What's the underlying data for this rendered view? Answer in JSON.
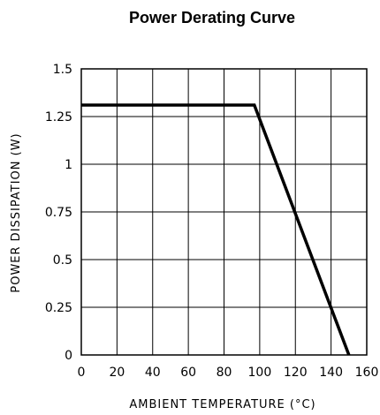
{
  "chart_data": {
    "type": "line",
    "title": "Power Derating Curve",
    "xlabel": "AMBIENT TEMPERATURE (°C)",
    "ylabel": "POWER DISSIPATION (W)",
    "xlim": [
      0,
      160
    ],
    "ylim": [
      0,
      1.5
    ],
    "x_ticks": [
      0,
      20,
      40,
      60,
      80,
      100,
      120,
      140,
      160
    ],
    "x_tick_labels": [
      "0",
      "20",
      "40",
      "60",
      "80",
      "100",
      "120",
      "140",
      "160"
    ],
    "y_ticks": [
      0,
      0.25,
      0.5,
      0.75,
      1,
      1.25,
      1.5
    ],
    "y_tick_labels": [
      "0",
      "0.25",
      "0.5",
      "0.75",
      "1",
      "1.25",
      "1.5"
    ],
    "grid": true,
    "series": [
      {
        "x": [
          0,
          97,
          150
        ],
        "y": [
          1.31,
          1.31,
          0
        ],
        "color": "#000000"
      }
    ]
  }
}
